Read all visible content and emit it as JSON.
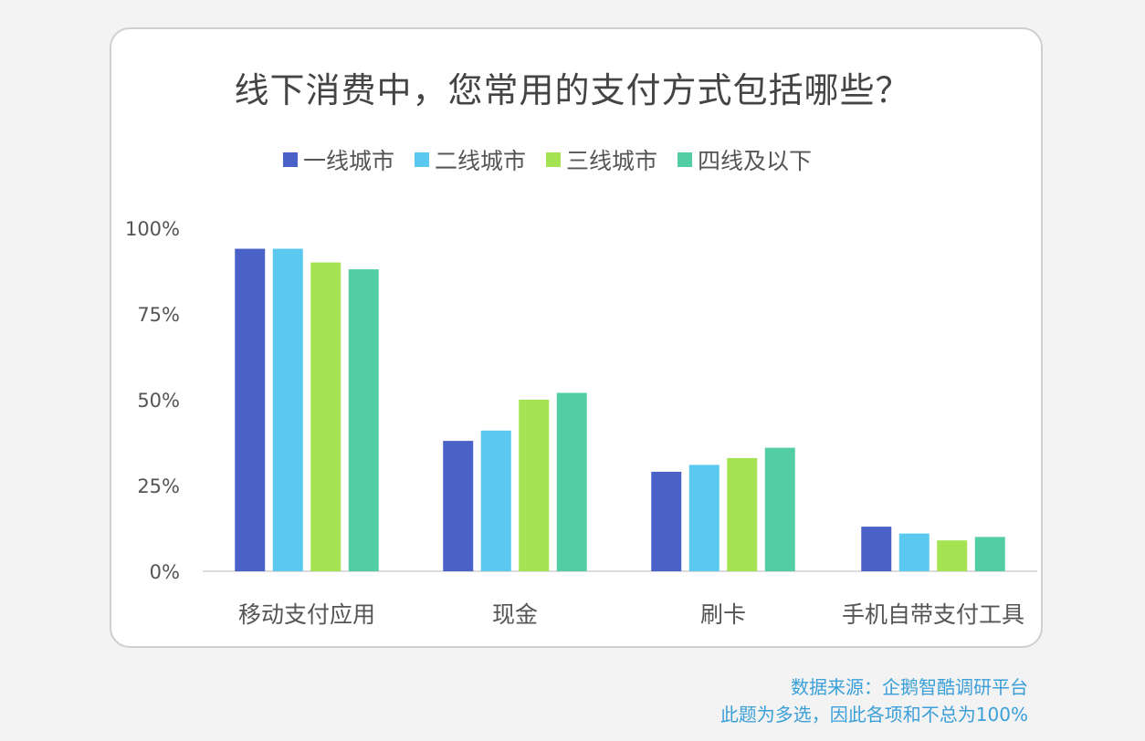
{
  "chart_data": {
    "type": "bar",
    "title": "线下消费中，您常用的支付方式包括哪些？",
    "categories": [
      "移动支付应用",
      "现金",
      "刷卡",
      "手机自带支付工具"
    ],
    "series": [
      {
        "name": "一线城市",
        "color": "#4a62c8",
        "values": [
          94,
          38,
          29,
          13
        ]
      },
      {
        "name": "二线城市",
        "color": "#5bc8f0",
        "values": [
          94,
          41,
          31,
          11
        ]
      },
      {
        "name": "三线城市",
        "color": "#a6e352",
        "values": [
          90,
          50,
          33,
          9
        ]
      },
      {
        "name": "四线及以下",
        "color": "#53cda4",
        "values": [
          88,
          52,
          36,
          10
        ]
      }
    ],
    "y_ticks": [
      {
        "value": 0,
        "label": "0%"
      },
      {
        "value": 25,
        "label": "25%"
      },
      {
        "value": 50,
        "label": "50%"
      },
      {
        "value": 75,
        "label": "75%"
      },
      {
        "value": 100,
        "label": "100%"
      }
    ],
    "ylim": [
      0,
      100
    ],
    "grid": false,
    "legend_position": "top"
  },
  "footer": {
    "source": "数据来源：企鹅智酷调研平台",
    "note": "此题为多选，因此各项和不总为100%"
  }
}
